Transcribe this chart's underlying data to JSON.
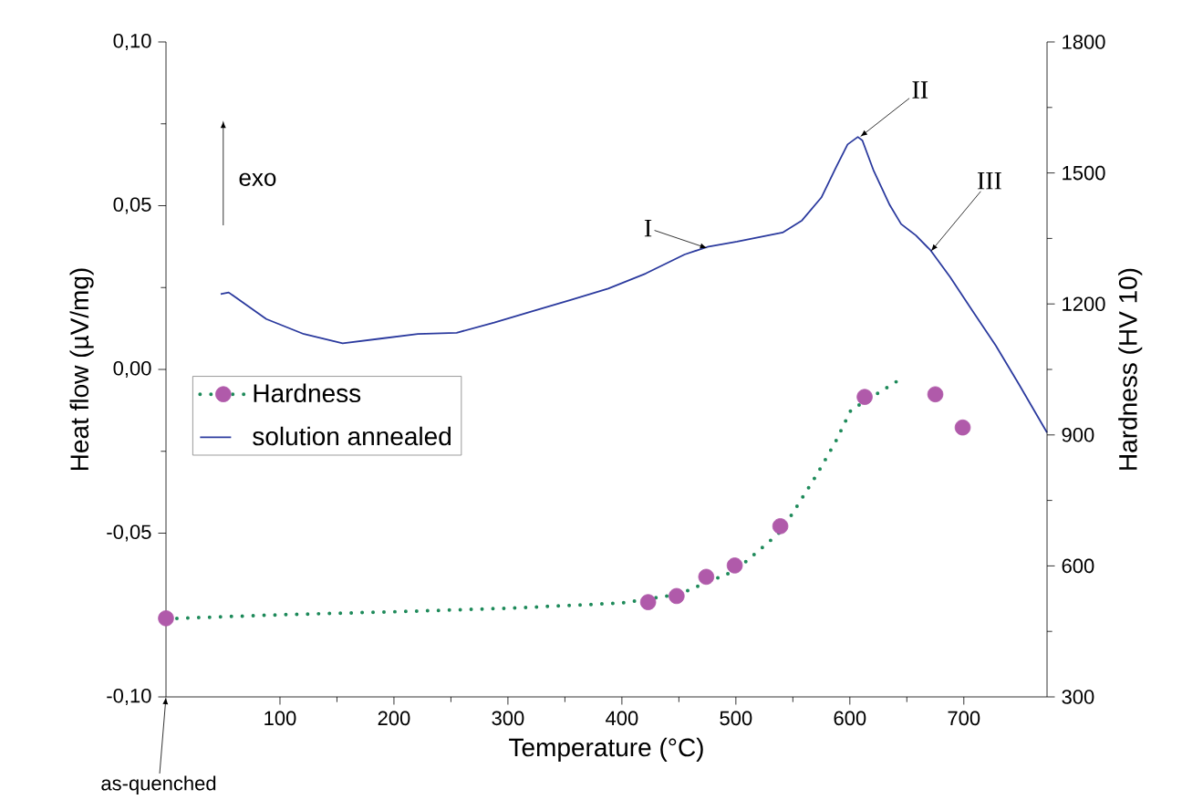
{
  "chart_data": {
    "type": "line",
    "xlabel": "Temperature (°C)",
    "ylabel": "Heat flow (µV/mg)",
    "y2label": "Hardness (HV 10)",
    "xlim": [
      0,
      773
    ],
    "xticks": [
      100,
      200,
      300,
      400,
      500,
      600,
      700
    ],
    "ylim": [
      -0.1,
      0.1
    ],
    "yticks": [
      {
        "value": -0.1,
        "label": "-0,10"
      },
      {
        "value": -0.05,
        "label": "-0,05"
      },
      {
        "value": 0,
        "label": "0,00"
      },
      {
        "value": 0.05,
        "label": "0,05"
      },
      {
        "value": 0.1,
        "label": "0,10"
      }
    ],
    "y2lim": [
      300,
      1800
    ],
    "y2ticks": [
      300,
      600,
      900,
      1200,
      1500,
      1800
    ],
    "legend": "left",
    "grid": false,
    "series": [
      {
        "name": "solution annealed",
        "color": "#2b3a9e",
        "line_style": "solid",
        "marker": "none",
        "x": [
          48,
          55,
          88,
          121,
          155,
          188,
          221,
          255,
          288,
          321,
          355,
          388,
          421,
          455,
          475,
          501,
          521,
          541,
          558,
          575,
          588,
          598,
          607,
          611,
          621,
          635,
          645,
          658,
          671,
          688,
          708,
          728,
          748,
          773
        ],
        "values": [
          0.023,
          0.0235,
          0.0154,
          0.0108,
          0.008,
          0.0094,
          0.0108,
          0.0112,
          0.0143,
          0.0177,
          0.0212,
          0.0247,
          0.0293,
          0.0351,
          0.0374,
          0.039,
          0.0404,
          0.0418,
          0.0455,
          0.0525,
          0.0618,
          0.0687,
          0.071,
          0.0699,
          0.0606,
          0.0502,
          0.0444,
          0.0409,
          0.0363,
          0.0282,
          0.0177,
          0.0073,
          -0.0043,
          -0.0193
        ]
      },
      {
        "name": "Hardness",
        "type": "scatter",
        "axis": "y2",
        "color": "#b05aaa",
        "marker": "circle",
        "x": [
          0,
          423,
          448,
          474,
          499,
          539,
          613,
          675,
          699
        ],
        "values": [
          480,
          517,
          531,
          575,
          601,
          691,
          987,
          993,
          917
        ]
      },
      {
        "axis": "y2",
        "color": "#1e8a5a",
        "line_style": "dotted",
        "marker": "none",
        "x": [
          0,
          100,
          200,
          300,
          400,
          450,
          500,
          540,
          571,
          588,
          601,
          647
        ],
        "values": [
          479,
          488,
          495,
          503,
          515,
          535,
          590,
          680,
          809,
          887,
          957,
          1032
        ]
      }
    ],
    "annotations": [
      {
        "text": "I",
        "x": 475,
        "y": 0.037
      },
      {
        "text": "II",
        "x": 609,
        "y": 0.071
      },
      {
        "text": "III",
        "x": 671,
        "y": 0.036
      },
      "as-quenched",
      "exo"
    ]
  }
}
